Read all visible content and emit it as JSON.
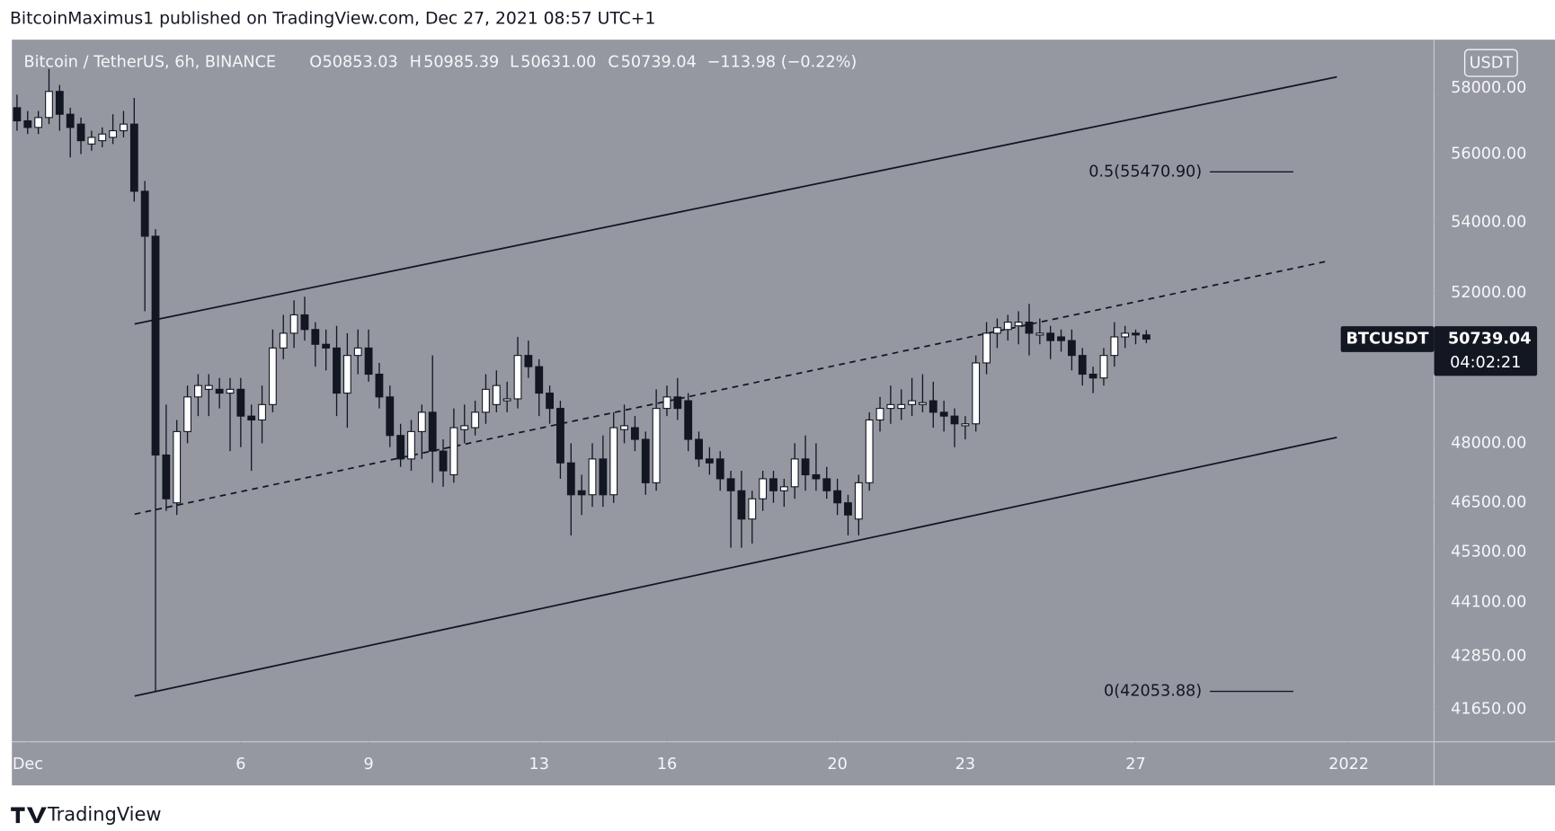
{
  "publisher": "BitcoinMaximus1 published on TradingView.com, Dec 27, 2021 08:57 UTC+1",
  "footer": "TradingView",
  "legend": {
    "symbol": "Bitcoin / TetherUS, 6h, BINANCE",
    "o_key": "O",
    "open": "50853.03",
    "h_key": "H",
    "high": "50985.39",
    "l_key": "L",
    "low": "50631.00",
    "c_key": "C",
    "close": "50739.04",
    "change": "−113.98 (−0.22%)"
  },
  "currency": "USDT",
  "price_label": {
    "symbol": "BTCUSDT",
    "price": "50739.04",
    "countdown": "04:02:21"
  },
  "chart_data": {
    "type": "candlestick",
    "log": true,
    "grid": false,
    "up_color": "#ffffff",
    "down_color": "#131722",
    "background": "#9598a1",
    "xlim": [
      0.63,
      34.0
    ],
    "ylim": [
      40940,
      59520
    ],
    "xticks": [
      {
        "value": 1,
        "label": "Dec"
      },
      6,
      9,
      13,
      16,
      20,
      23,
      27,
      {
        "value": 32,
        "label": "2022"
      }
    ],
    "yticks": [
      {
        "value": 58000,
        "label": "58000.00"
      },
      {
        "value": 56000,
        "label": "56000.00"
      },
      {
        "value": 54000,
        "label": "54000.00"
      },
      {
        "value": 52000,
        "label": "52000.00"
      },
      {
        "value": 48000,
        "label": "48000.00"
      },
      {
        "value": 46500,
        "label": "46500.00"
      },
      {
        "value": 45300,
        "label": "45300.00"
      },
      {
        "value": 44100,
        "label": "44100.00"
      },
      {
        "value": 42850,
        "label": "42850.00"
      },
      {
        "value": 41650,
        "label": "41650.00"
      }
    ],
    "x": [
      0.75,
      1,
      1.25,
      1.5,
      1.75,
      2,
      2.25,
      2.5,
      2.75,
      3,
      3.25,
      3.5,
      3.75,
      4,
      4.25,
      4.5,
      4.75,
      5,
      5.25,
      5.5,
      5.75,
      6,
      6.25,
      6.5,
      6.75,
      7,
      7.25,
      7.5,
      7.75,
      8,
      8.25,
      8.5,
      8.75,
      9,
      9.25,
      9.5,
      9.75,
      10,
      10.25,
      10.5,
      10.75,
      11,
      11.25,
      11.5,
      11.75,
      12,
      12.25,
      12.5,
      12.75,
      13,
      13.25,
      13.5,
      13.75,
      14,
      14.25,
      14.5,
      14.75,
      15,
      15.25,
      15.5,
      15.75,
      16,
      16.25,
      16.5,
      16.75,
      17,
      17.25,
      17.5,
      17.75,
      18,
      18.25,
      18.5,
      18.75,
      19,
      19.25,
      19.5,
      19.75,
      20,
      20.25,
      20.5,
      20.75,
      21,
      21.25,
      21.5,
      21.75,
      22,
      22.25,
      22.5,
      22.75,
      23,
      23.25,
      23.5,
      23.75,
      24,
      24.25,
      24.5,
      24.75,
      25,
      25.25,
      25.5,
      25.75,
      26,
      26.25,
      26.5,
      26.75,
      27,
      27.25
    ],
    "open": [
      57400,
      57000,
      56800,
      57100,
      57900,
      57200,
      56900,
      56300,
      56400,
      56500,
      56700,
      56900,
      54900,
      53600,
      47700,
      46500,
      48300,
      49200,
      49400,
      49400,
      49300,
      49400,
      48700,
      48600,
      49000,
      50500,
      50900,
      51400,
      51000,
      50600,
      50500,
      49300,
      50300,
      50500,
      49800,
      49200,
      48200,
      47600,
      48300,
      48800,
      47800,
      47200,
      48350,
      48400,
      48800,
      49000,
      49100,
      49150,
      50300,
      50000,
      49300,
      48900,
      47500,
      46800,
      46700,
      47600,
      46700,
      48350,
      48400,
      48100,
      47000,
      48900,
      49200,
      49100,
      48100,
      47600,
      47600,
      47100,
      46800,
      46100,
      46600,
      47100,
      46800,
      46900,
      47600,
      47200,
      47100,
      46800,
      46500,
      46100,
      47000,
      48600,
      48900,
      48900,
      49000,
      49000,
      49100,
      48800,
      48700,
      48450,
      48500,
      50100,
      50900,
      51000,
      51100,
      51200,
      50850,
      50900,
      50800,
      50700,
      50300,
      49800,
      49700,
      50300,
      50800,
      50900,
      50853.03
    ],
    "high": [
      57800,
      57300,
      57300,
      58600,
      58100,
      57400,
      57100,
      56700,
      56800,
      57200,
      57300,
      57700,
      55200,
      53800,
      49000,
      48600,
      49500,
      49800,
      49800,
      49700,
      49700,
      49700,
      49000,
      49500,
      51000,
      51400,
      51800,
      51900,
      51200,
      51000,
      51100,
      50900,
      51000,
      51000,
      50100,
      49500,
      48500,
      48600,
      49000,
      50300,
      48100,
      48900,
      49000,
      49100,
      49800,
      49900,
      49600,
      50800,
      50700,
      50200,
      49500,
      49100,
      48000,
      47200,
      48000,
      48200,
      48800,
      49000,
      48700,
      48300,
      49400,
      49500,
      49700,
      49300,
      48300,
      47900,
      47800,
      47300,
      47300,
      46800,
      47300,
      47300,
      47100,
      48000,
      48200,
      48000,
      47400,
      47100,
      46700,
      47200,
      48800,
      49200,
      49500,
      49400,
      49700,
      49800,
      49600,
      49100,
      48900,
      48700,
      50300,
      51200,
      51300,
      51400,
      51500,
      51700,
      51300,
      51100,
      51000,
      51000,
      50500,
      50000,
      50500,
      51200,
      51100,
      51000,
      50985.39
    ],
    "low": [
      56700,
      56600,
      56600,
      56900,
      56700,
      55900,
      56000,
      56100,
      56200,
      56300,
      56500,
      54600,
      51500,
      42053.88,
      46300,
      46200,
      48000,
      48700,
      48700,
      48900,
      47800,
      47900,
      47300,
      48000,
      48800,
      50200,
      50500,
      50700,
      50000,
      49900,
      48700,
      48400,
      49800,
      49600,
      48900,
      47900,
      47400,
      47300,
      47600,
      47000,
      46900,
      47000,
      48000,
      48200,
      48500,
      48800,
      48800,
      48900,
      49700,
      48700,
      48500,
      47100,
      45700,
      46200,
      46400,
      46400,
      46500,
      48000,
      47800,
      46700,
      46800,
      48700,
      48600,
      47800,
      47400,
      47200,
      46800,
      45400,
      45400,
      45500,
      46300,
      46500,
      46400,
      46600,
      46800,
      46800,
      46600,
      46200,
      45700,
      45700,
      46800,
      48300,
      48500,
      48600,
      48700,
      48800,
      48400,
      48300,
      47900,
      48100,
      48300,
      49800,
      50500,
      50700,
      50600,
      50300,
      50600,
      50200,
      50400,
      49900,
      49500,
      49300,
      49500,
      50000,
      50500,
      50600,
      50631
    ],
    "close": [
      57000,
      56800,
      57100,
      57900,
      57200,
      56800,
      56400,
      56500,
      56600,
      56700,
      56900,
      54900,
      53600,
      47700,
      46600,
      48300,
      49200,
      49500,
      49500,
      49300,
      49400,
      48700,
      48600,
      49000,
      50500,
      50900,
      51400,
      51000,
      50600,
      50500,
      49300,
      50300,
      50500,
      49800,
      49200,
      48200,
      47600,
      48300,
      48800,
      47800,
      47300,
      48400,
      48450,
      48800,
      49400,
      49500,
      49150,
      50300,
      50000,
      49300,
      48900,
      47500,
      46700,
      46700,
      47600,
      46700,
      48400,
      48450,
      48100,
      47000,
      48900,
      49200,
      48900,
      48100,
      47600,
      47500,
      47100,
      46800,
      46100,
      46600,
      47100,
      46800,
      46900,
      47600,
      47200,
      47100,
      46800,
      46500,
      46200,
      47000,
      48600,
      48900,
      49000,
      49000,
      49100,
      49050,
      48800,
      48700,
      48500,
      48500,
      50100,
      50900,
      51050,
      51200,
      51200,
      50900,
      50900,
      50700,
      50700,
      50300,
      49800,
      49700,
      50300,
      50800,
      50900,
      50853.03,
      50739.04
    ],
    "trendlines": [
      {
        "x": [
          3.51,
          31.72
        ],
        "y": [
          51150,
          58350
        ],
        "style": "solid"
      },
      {
        "x": [
          3.51,
          31.53
        ],
        "y": [
          46220,
          52900
        ],
        "style": "dashed"
      },
      {
        "x": [
          3.51,
          31.72
        ],
        "y": [
          41950,
          48150
        ],
        "style": "solid"
      }
    ],
    "fib_levels": [
      {
        "label": "0.5(55470.90)",
        "value": 55470.9,
        "x": [
          28.74,
          30.7
        ]
      },
      {
        "label": "0(42053.88)",
        "value": 42053.88,
        "x": [
          28.74,
          30.7
        ]
      }
    ]
  }
}
